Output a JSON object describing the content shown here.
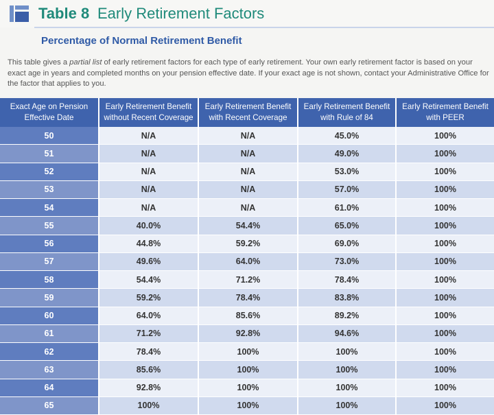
{
  "header": {
    "table_number": "Table 8",
    "title": "Early Retirement Factors",
    "subtitle": "Percentage of Normal Retirement Benefit"
  },
  "description": {
    "part1": "This table gives a ",
    "emphasis": "partial list",
    "part2": " of early retirement factors for each type of early retirement. Your own early retirement factor is based on your exact age in years and completed months on your pension effective date. If your exact age is not shown, contact your Administrative Office for the factor that applies to you."
  },
  "table": {
    "columns": [
      "Exact Age on Pension Effective Date",
      "Early Retirement Benefit without Recent Coverage",
      "Early Retirement Benefit with Recent Coverage",
      "Early Retirement Benefit with Rule of 84",
      "Early Retirement Benefit with PEER"
    ],
    "rows": [
      [
        "50",
        "N/A",
        "N/A",
        "45.0%",
        "100%"
      ],
      [
        "51",
        "N/A",
        "N/A",
        "49.0%",
        "100%"
      ],
      [
        "52",
        "N/A",
        "N/A",
        "53.0%",
        "100%"
      ],
      [
        "53",
        "N/A",
        "N/A",
        "57.0%",
        "100%"
      ],
      [
        "54",
        "N/A",
        "N/A",
        "61.0%",
        "100%"
      ],
      [
        "55",
        "40.0%",
        "54.4%",
        "65.0%",
        "100%"
      ],
      [
        "56",
        "44.8%",
        "59.2%",
        "69.0%",
        "100%"
      ],
      [
        "57",
        "49.6%",
        "64.0%",
        "73.0%",
        "100%"
      ],
      [
        "58",
        "54.4%",
        "71.2%",
        "78.4%",
        "100%"
      ],
      [
        "59",
        "59.2%",
        "78.4%",
        "83.8%",
        "100%"
      ],
      [
        "60",
        "64.0%",
        "85.6%",
        "89.2%",
        "100%"
      ],
      [
        "61",
        "71.2%",
        "92.8%",
        "94.6%",
        "100%"
      ],
      [
        "62",
        "78.4%",
        "100%",
        "100%",
        "100%"
      ],
      [
        "63",
        "85.6%",
        "100%",
        "100%",
        "100%"
      ],
      [
        "64",
        "92.8%",
        "100%",
        "100%",
        "100%"
      ],
      [
        "65",
        "100%",
        "100%",
        "100%",
        "100%"
      ]
    ]
  }
}
